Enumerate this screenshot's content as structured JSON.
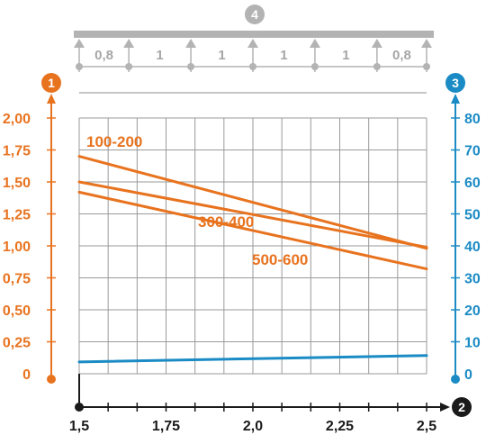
{
  "colors": {
    "left_axis": "#e8731f",
    "right_axis": "#1a8bc4",
    "bottom_axis": "#1a1a1a",
    "grid": "#9a9a9a",
    "beam": "#b3b3b3",
    "series_orange": "#e8731f",
    "series_blue": "#1a8bc4"
  },
  "markers": {
    "left": "1",
    "bottom": "2",
    "right": "3",
    "top": "4"
  },
  "beam": {
    "spans": [
      "0,8",
      "1",
      "1",
      "1",
      "1",
      "0,8"
    ]
  },
  "chart_data": {
    "type": "line",
    "title": "",
    "xlabel": "",
    "ylabel": "",
    "x_ticks": [
      "1,5",
      "1,75",
      "2,0",
      "2,25",
      "2,5"
    ],
    "x_tick_values": [
      1.5,
      1.75,
      2.0,
      2.25,
      2.5
    ],
    "xlim": [
      1.5,
      2.5
    ],
    "left_y_ticks": [
      "0",
      "0,25",
      "0,50",
      "0,75",
      "1,00",
      "1,25",
      "1,50",
      "1,75",
      "2,00"
    ],
    "left_y_tick_values": [
      0,
      0.25,
      0.5,
      0.75,
      1.0,
      1.25,
      1.5,
      1.75,
      2.0
    ],
    "left_ylim": [
      0,
      2.0
    ],
    "right_y_ticks": [
      "0",
      "10",
      "20",
      "30",
      "40",
      "50",
      "60",
      "70",
      "80"
    ],
    "right_y_tick_values": [
      0,
      10,
      20,
      30,
      40,
      50,
      60,
      70,
      80
    ],
    "right_ylim": [
      0,
      80
    ],
    "grid": true,
    "series": [
      {
        "name": "100-200",
        "axis": "left",
        "color": "#e8731f",
        "x": [
          1.5,
          2.5
        ],
        "y": [
          1.7,
          0.98
        ]
      },
      {
        "name": "300-400",
        "axis": "left",
        "color": "#e8731f",
        "x": [
          1.5,
          2.5
        ],
        "y": [
          1.5,
          0.99
        ]
      },
      {
        "name": "500-600",
        "axis": "left",
        "color": "#e8731f",
        "x": [
          1.5,
          2.5
        ],
        "y": [
          1.42,
          0.82
        ]
      },
      {
        "name": "",
        "axis": "right",
        "color": "#1a8bc4",
        "x": [
          1.5,
          2.5
        ],
        "y": [
          3.7,
          5.7
        ]
      }
    ]
  }
}
